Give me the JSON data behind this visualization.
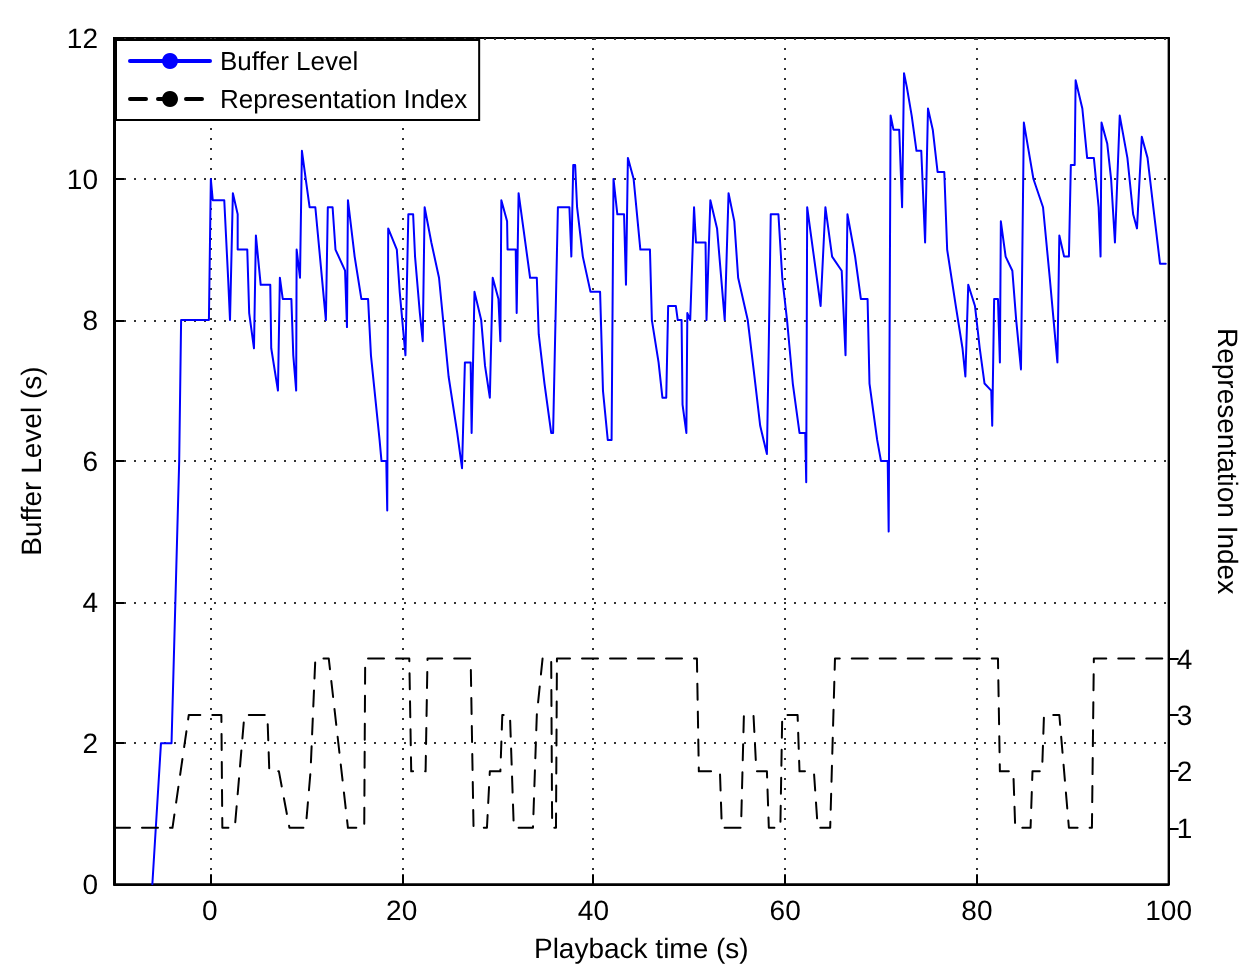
{
  "chart_data": {
    "type": "line",
    "xlabel": "Playback time (s)",
    "ylabel": "Buffer Level (s)",
    "y2label": "Representation Index",
    "xlim": [
      -10,
      100
    ],
    "xticks": [
      0,
      20,
      40,
      60,
      80,
      100
    ],
    "ylim": [
      0,
      12
    ],
    "yticks": [
      0,
      2,
      4,
      6,
      8,
      10,
      12
    ],
    "y2lim": [
      0,
      15
    ],
    "y2ticks": [
      1,
      2,
      3,
      4
    ],
    "grid": true,
    "legend": "top left",
    "marker": "none",
    "series": [
      {
        "name": "Buffer Level",
        "color": "#0000ff",
        "line_style": "solid",
        "x": [
          -6,
          -5.1,
          -4,
          -3.6,
          -3.2,
          -3,
          -0.1,
          0.1,
          0.3,
          1.5,
          1.9,
          2.1,
          2.4,
          2.9,
          2.9,
          3.9,
          4.1,
          4.6,
          4.8,
          5.3,
          6.3,
          6.4,
          7.1,
          7.3,
          7.6,
          8.5,
          8.7,
          9,
          9.05,
          9.4,
          9.6,
          10,
          10.4,
          11,
          12.1,
          12.3,
          12.8,
          13.1,
          14.1,
          14.3,
          14.4,
          15.1,
          15.8,
          16.5,
          16.8,
          17.7,
          17.9,
          18.4,
          18.5,
          18.6,
          19.5,
          19.8,
          20.4,
          20.7,
          21.2,
          21.4,
          21.9,
          22.2,
          22.4,
          23.1,
          23.9,
          24.9,
          25.8,
          26.3,
          26.6,
          27.2,
          27.3,
          27.6,
          28.3,
          28.7,
          29.2,
          29.5,
          30.1,
          30.3,
          30.4,
          31,
          31.05,
          31.9,
          32,
          32.2,
          32.7,
          33.4,
          34.1,
          34.3,
          34.9,
          35.6,
          35.8,
          36.3,
          37.5,
          37.7,
          37.9,
          38.1,
          38.3,
          38.9,
          39.7,
          40.7,
          41,
          41.5,
          41.9,
          42.1,
          42.5,
          43.2,
          43.4,
          43.6,
          44.2,
          44.9,
          45.9,
          46.1,
          46.8,
          47.2,
          47.6,
          47.8,
          48.6,
          48.8,
          49.2,
          49.3,
          49.7,
          49.8,
          50.1,
          50.5,
          50.7,
          51.7,
          51.8,
          52.2,
          52.9,
          53.7,
          54.1,
          54.7,
          55.1,
          56.1,
          56.8,
          57.4,
          58.1,
          58.3,
          58.5,
          59.3,
          59.7,
          60.2,
          60.8,
          61.5,
          62.1,
          62.2,
          62.3,
          62.9,
          63.7,
          64.2,
          64.9,
          65.9,
          66.3,
          66.5,
          67.3,
          67.9,
          68.6,
          68.8,
          69.3,
          69.6,
          70,
          70.7,
          70.8,
          71,
          71.3,
          71.9,
          72.2,
          72.4,
          72.7,
          73.2,
          73.7,
          74.2,
          74.6,
          74.9,
          75.4,
          75.9,
          76.6,
          76.9,
          77.8,
          78.5,
          78.8,
          79.1,
          79.8,
          80.3,
          80.8,
          81.5,
          81.6,
          81.8,
          82.2,
          82.4,
          82.5,
          83,
          83.7,
          84.1,
          84.6,
          84.9,
          85.4,
          85.9,
          86.9,
          87.6,
          88.4,
          88.6,
          89.1,
          89.6,
          89.8,
          90.2,
          90.3,
          91,
          91.5,
          92.2,
          92.7,
          92.9,
          93,
          93.6,
          94,
          94.4,
          94.9,
          95.7,
          96.3,
          96.7,
          97.2,
          97.8,
          98.4,
          99.1,
          99.7
        ],
        "values": [
          0,
          2,
          2,
          4,
          6,
          8,
          8,
          10,
          9.7,
          9.7,
          8.6,
          8,
          9.8,
          9.5,
          9,
          9,
          8.1,
          7.6,
          9.2,
          8.5,
          8.5,
          7.6,
          7,
          8.6,
          8.3,
          8.3,
          7.5,
          7,
          9,
          8.6,
          10.4,
          10,
          9.6,
          9.6,
          8,
          9.6,
          9.6,
          9,
          8.7,
          7.9,
          9.7,
          8.9,
          8.3,
          8.3,
          7.5,
          6.3,
          6,
          6,
          5.3,
          9.3,
          9,
          8.4,
          7.5,
          9.5,
          9.5,
          8.9,
          8.1,
          7.7,
          9.6,
          9.1,
          8.6,
          7.2,
          6.4,
          5.9,
          7.4,
          7.4,
          6.4,
          8.4,
          8,
          7.35,
          6.9,
          8.6,
          8.3,
          7.7,
          9.7,
          9.4,
          9,
          9,
          8.1,
          9.8,
          9.3,
          8.6,
          8.6,
          7.8,
          7.1,
          6.4,
          6.4,
          9.6,
          9.6,
          8.9,
          10.2,
          10.2,
          9.6,
          8.9,
          8.4,
          8.4,
          7,
          6.3,
          6.3,
          10,
          9.5,
          9.5,
          8.5,
          10.3,
          10,
          9,
          9,
          8,
          7.4,
          6.9,
          6.9,
          8.2,
          8.2,
          8,
          8,
          6.8,
          6.4,
          8.1,
          8,
          9.6,
          9.1,
          9.1,
          8,
          9.7,
          9.3,
          8,
          9.8,
          9.4,
          8.6,
          8,
          7.2,
          6.5,
          6.1,
          7.7,
          9.5,
          9.5,
          8.6,
          8,
          7.1,
          6.4,
          6.4,
          5.7,
          9.6,
          9,
          8.2,
          9.6,
          8.9,
          8.7,
          7.5,
          9.5,
          8.9,
          8.3,
          8.3,
          7.1,
          6.6,
          6.3,
          6,
          6,
          5,
          10.9,
          10.7,
          10.7,
          9.6,
          11.5,
          11.3,
          10.9,
          10.4,
          10.4,
          9.1,
          11,
          10.7,
          10.1,
          10.1,
          9,
          8.2,
          7.6,
          7.2,
          8.5,
          8.2,
          7.6,
          7.1,
          7,
          6.5,
          8.3,
          8.3,
          7.4,
          9.4,
          8.9,
          8.7,
          8,
          7.3,
          10.8,
          10.4,
          10,
          9.6,
          8.6,
          7.4,
          9.2,
          8.9,
          8.9,
          10.2,
          10.2,
          11.4,
          11,
          10.3,
          10.3,
          9.6,
          8.9,
          10.8,
          10.5,
          10,
          9.1,
          10.9,
          10.3,
          9.5,
          9.3,
          10.6,
          10.3,
          9.6,
          8.8,
          8.8
        ]
      },
      {
        "name": "Representation Index",
        "color": "#000000",
        "line_style": "dashed",
        "axis": "y2",
        "x": [
          -10,
          -3.9,
          -2.2,
          1.2,
          1.3,
          2.6,
          3.6,
          6,
          6.2,
          7.2,
          8.3,
          10,
          10.5,
          11,
          12.4,
          14.4,
          16.1,
          16.2,
          20.8,
          21,
          22.5,
          22.7,
          27.2,
          27.5,
          28.9,
          29.2,
          30.3,
          30.5,
          31.3,
          31.7,
          33.7,
          34.1,
          34.7,
          35.6,
          35.7,
          36.1,
          36.2,
          50.8,
          51,
          53.2,
          53.4,
          55.4,
          55.7,
          56.7,
          57,
          58.1,
          58.3,
          59.5,
          59.7,
          61.3,
          61.5,
          62,
          63,
          63.4,
          64.7,
          65.2,
          82.2,
          82.4,
          83.8,
          84,
          85.6,
          85.8,
          86.8,
          87,
          88.6,
          89.6,
          92,
          92.2,
          100
        ],
        "values": [
          1,
          1,
          3,
          3,
          1,
          1,
          3,
          3,
          2,
          2,
          1,
          1,
          2,
          4,
          4,
          1,
          1,
          4,
          4,
          2,
          2,
          4,
          4,
          1,
          1,
          2,
          2,
          3,
          3,
          1,
          1,
          3,
          4,
          4,
          1,
          1,
          4,
          4,
          2,
          2,
          1,
          1,
          3,
          3,
          2,
          2,
          1,
          1,
          3,
          3,
          2,
          2,
          2,
          1,
          1,
          4,
          4,
          2,
          2,
          1,
          1,
          2,
          2,
          3,
          3,
          1,
          1,
          4,
          4
        ]
      }
    ]
  }
}
